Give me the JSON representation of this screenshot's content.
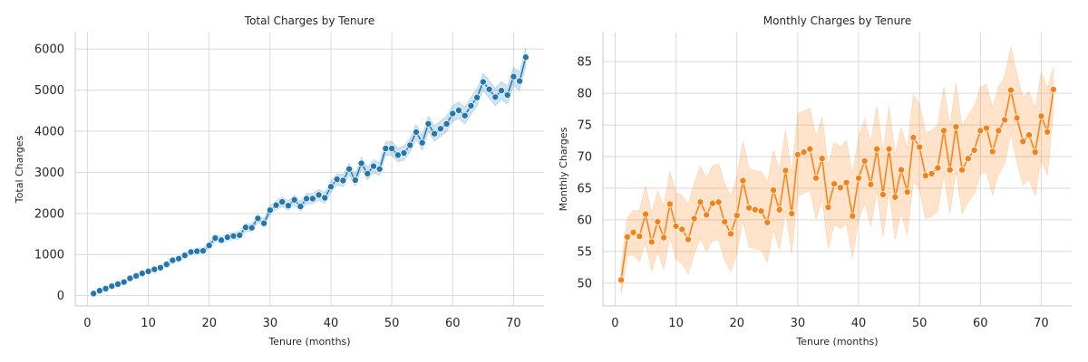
{
  "chart_data": [
    {
      "type": "line",
      "title": "Total Charges by Tenure",
      "xlabel": "Tenure (months)",
      "ylabel": "Total Charges",
      "xlim": [
        -2,
        75
      ],
      "ylim": [
        -250,
        6400
      ],
      "xticks": [
        0,
        10,
        20,
        30,
        40,
        50,
        60,
        70
      ],
      "yticks": [
        0,
        1000,
        2000,
        3000,
        4000,
        5000,
        6000
      ],
      "grid": true,
      "color": "#1f77b4",
      "band_halfwidth": [
        10,
        15,
        20,
        25,
        30,
        35,
        40,
        45,
        50,
        55,
        55,
        60,
        60,
        65,
        65,
        70,
        70,
        70,
        75,
        80,
        85,
        85,
        90,
        90,
        95,
        95,
        100,
        100,
        105,
        110,
        110,
        115,
        115,
        120,
        125,
        125,
        130,
        130,
        135,
        140,
        140,
        145,
        145,
        150,
        150,
        155,
        160,
        160,
        165,
        170,
        170,
        175,
        175,
        180,
        185,
        185,
        190,
        190,
        195,
        195,
        200,
        205,
        205,
        210,
        210,
        215,
        215,
        220,
        225,
        225,
        230,
        230
      ],
      "series": [
        {
          "x": [
            1,
            2,
            3,
            4,
            5,
            6,
            7,
            8,
            9,
            10,
            11,
            12,
            13,
            14,
            15,
            16,
            17,
            18,
            19,
            20,
            21,
            22,
            23,
            24,
            25,
            26,
            27,
            28,
            29,
            30,
            31,
            32,
            33,
            34,
            35,
            36,
            37,
            38,
            39,
            40,
            41,
            42,
            43,
            44,
            45,
            46,
            47,
            48,
            49,
            50,
            51,
            52,
            53,
            54,
            55,
            56,
            57,
            58,
            59,
            60,
            61,
            62,
            63,
            64,
            65,
            66,
            67,
            68,
            69,
            70,
            71,
            72
          ],
          "y": [
            50,
            120,
            170,
            230,
            280,
            330,
            420,
            480,
            540,
            590,
            640,
            680,
            760,
            860,
            900,
            980,
            1060,
            1080,
            1090,
            1220,
            1400,
            1350,
            1420,
            1450,
            1470,
            1660,
            1650,
            1880,
            1760,
            2080,
            2200,
            2280,
            2190,
            2330,
            2170,
            2360,
            2360,
            2450,
            2380,
            2650,
            2830,
            2800,
            3080,
            2810,
            3220,
            2970,
            3150,
            3080,
            3580,
            3580,
            3420,
            3470,
            3660,
            3980,
            3720,
            4180,
            3940,
            4060,
            4180,
            4430,
            4510,
            4380,
            4620,
            4820,
            5200,
            5020,
            4830,
            4990,
            4880,
            5330,
            5220,
            5800
          ]
        }
      ]
    },
    {
      "type": "line",
      "title": "Monthly Charges by Tenure",
      "xlabel": "Tenure (months)",
      "ylabel": "Monthly Charges",
      "xlim": [
        -2,
        75
      ],
      "ylim": [
        46.4,
        89.6
      ],
      "xticks": [
        0,
        10,
        20,
        30,
        40,
        50,
        60,
        70
      ],
      "yticks": [
        50,
        55,
        60,
        65,
        70,
        75,
        80,
        85
      ],
      "grid": true,
      "color": "#ff7f0e",
      "band_halfwidth": [
        2.3,
        3.0,
        3.5,
        4.0,
        4.5,
        4.6,
        4.8,
        5.0,
        5.2,
        5.3,
        5.4,
        5.5,
        5.6,
        5.7,
        5.8,
        5.9,
        6.0,
        6.0,
        6.0,
        6.1,
        6.2,
        6.2,
        6.2,
        6.2,
        6.3,
        6.3,
        6.3,
        6.4,
        6.4,
        6.5,
        6.5,
        6.5,
        6.5,
        6.5,
        6.5,
        6.5,
        6.5,
        6.6,
        6.6,
        6.6,
        6.6,
        6.6,
        6.7,
        6.7,
        6.7,
        6.7,
        6.7,
        6.8,
        6.8,
        6.8,
        6.8,
        6.8,
        6.8,
        6.9,
        6.9,
        6.9,
        6.9,
        6.9,
        6.9,
        6.9,
        6.9,
        6.9,
        6.9,
        6.9,
        6.9,
        6.9,
        6.9,
        6.9,
        6.9,
        6.9,
        6.9,
        3.5
      ],
      "series": [
        {
          "x": [
            1,
            2,
            3,
            4,
            5,
            6,
            7,
            8,
            9,
            10,
            11,
            12,
            13,
            14,
            15,
            16,
            17,
            18,
            19,
            20,
            21,
            22,
            23,
            24,
            25,
            26,
            27,
            28,
            29,
            30,
            31,
            32,
            33,
            34,
            35,
            36,
            37,
            38,
            39,
            40,
            41,
            42,
            43,
            44,
            45,
            46,
            47,
            48,
            49,
            50,
            51,
            52,
            53,
            54,
            55,
            56,
            57,
            58,
            59,
            60,
            61,
            62,
            63,
            64,
            65,
            66,
            67,
            68,
            69,
            70,
            71,
            72
          ],
          "y": [
            50.5,
            57.3,
            58.0,
            57.4,
            60.9,
            56.5,
            59.7,
            57.2,
            62.5,
            59.0,
            58.5,
            56.9,
            60.2,
            62.8,
            60.8,
            62.6,
            62.8,
            59.7,
            57.8,
            60.7,
            66.2,
            61.9,
            61.6,
            61.4,
            59.6,
            64.7,
            61.6,
            67.8,
            61.0,
            70.3,
            70.7,
            71.2,
            66.6,
            69.7,
            62.0,
            65.7,
            65.1,
            65.9,
            60.6,
            66.6,
            69.3,
            65.6,
            71.2,
            64.0,
            71.2,
            63.6,
            67.9,
            64.4,
            73.0,
            71.5,
            67.0,
            67.3,
            68.2,
            74.1,
            67.9,
            74.7,
            67.9,
            69.7,
            71.0,
            74.1,
            74.5,
            70.8,
            74.1,
            75.8,
            80.5,
            76.1,
            72.4,
            73.4,
            70.7,
            76.4,
            73.9,
            80.6
          ]
        }
      ]
    }
  ]
}
